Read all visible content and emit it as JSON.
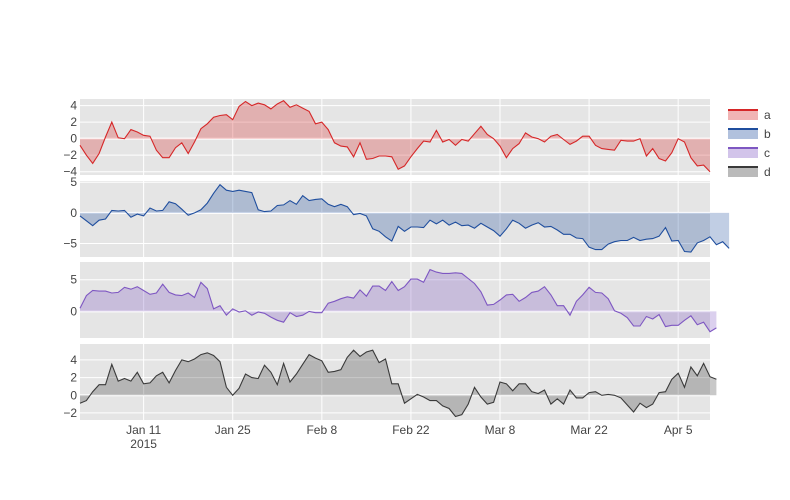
{
  "chart_data": {
    "type": "area",
    "fill_to": "zero",
    "x_start": "2015-01-01",
    "x_end": "2015-04-10",
    "x_ticks": [
      {
        "date": "2015-01-11",
        "label": "Jan 11",
        "sublabel": "2015"
      },
      {
        "date": "2015-01-25",
        "label": "Jan 25",
        "sublabel": ""
      },
      {
        "date": "2015-02-08",
        "label": "Feb 8",
        "sublabel": ""
      },
      {
        "date": "2015-02-22",
        "label": "Feb 22",
        "sublabel": ""
      },
      {
        "date": "2015-03-08",
        "label": "Mar 8",
        "sublabel": ""
      },
      {
        "date": "2015-03-22",
        "label": "Mar 22",
        "sublabel": ""
      },
      {
        "date": "2015-04-05",
        "label": "Apr 5",
        "sublabel": ""
      }
    ],
    "grid": true,
    "legend": "right",
    "series": [
      {
        "name": "a",
        "color": "#d62728",
        "ylim": [
          -4.4,
          4.8
        ],
        "yticks": [
          -4,
          -2,
          0,
          2,
          4
        ],
        "values": [
          -0.8,
          -2.0,
          -3.0,
          -1.8,
          0.2,
          2.0,
          0.1,
          0.0,
          1.1,
          0.8,
          0.4,
          0.3,
          -1.4,
          -2.3,
          -2.3,
          -1.1,
          -0.5,
          -1.8,
          -0.4,
          1.2,
          1.8,
          2.6,
          2.8,
          2.9,
          2.3,
          3.9,
          4.5,
          4.0,
          4.3,
          4.1,
          3.6,
          4.2,
          4.6,
          3.8,
          4.1,
          3.7,
          3.3,
          1.8,
          2.0,
          1.1,
          -0.5,
          -0.9,
          -1.0,
          -2.2,
          -0.5,
          -2.5,
          -2.4,
          -2.1,
          -2.1,
          -2.2,
          -3.7,
          -3.3,
          -2.2,
          -1.2,
          -0.3,
          -0.4,
          1.0,
          -0.4,
          -0.1,
          -0.8,
          -0.1,
          -0.3,
          0.6,
          1.5,
          0.5,
          0.0,
          -0.9,
          -2.3,
          -1.2,
          -0.6,
          0.7,
          0.2,
          0.0,
          -0.4,
          0.3,
          0.5,
          -0.1,
          -0.7,
          -0.3,
          0.3,
          0.3,
          -0.8,
          -1.2,
          -1.3,
          -1.4,
          -0.2,
          -0.3,
          -0.3,
          0.0,
          -2.1,
          -1.2,
          -2.4,
          -2.7,
          -1.7,
          0.0,
          -0.4,
          -2.3,
          -3.3,
          -3.2,
          -4.0
        ]
      },
      {
        "name": "b",
        "color": "#1f4e9e",
        "ylim": [
          -7.2,
          5.2
        ],
        "yticks": [
          -5,
          0,
          5
        ],
        "values": [
          -0.5,
          -1.3,
          -2.1,
          -1.2,
          -1.0,
          0.4,
          0.3,
          0.4,
          -0.7,
          -0.2,
          -0.5,
          0.8,
          0.3,
          0.4,
          1.8,
          1.5,
          0.6,
          -0.4,
          0.0,
          0.5,
          1.6,
          3.2,
          4.6,
          3.7,
          3.5,
          3.7,
          3.5,
          3.3,
          0.5,
          0.2,
          0.3,
          1.2,
          1.3,
          2.0,
          1.4,
          2.8,
          2.0,
          2.2,
          2.3,
          1.4,
          1.0,
          1.4,
          1.0,
          -0.3,
          -0.1,
          -0.5,
          -2.6,
          -3.0,
          -3.9,
          -4.6,
          -2.2,
          -3.0,
          -2.3,
          -2.3,
          -2.4,
          -1.2,
          -1.8,
          -1.2,
          -2.0,
          -1.5,
          -2.1,
          -2.0,
          -2.5,
          -1.7,
          -2.3,
          -2.9,
          -3.8,
          -2.6,
          -1.2,
          -1.7,
          -2.5,
          -2.0,
          -1.6,
          -2.3,
          -2.2,
          -2.8,
          -3.5,
          -3.5,
          -4.1,
          -4.2,
          -5.6,
          -6.0,
          -6.0,
          -5.1,
          -4.7,
          -4.5,
          -4.5,
          -4.0,
          -4.5,
          -4.3,
          -4.2,
          -3.8,
          -2.4,
          -4.6,
          -4.5,
          -6.3,
          -6.4,
          -4.9,
          -4.5,
          -3.9,
          -5.2,
          -4.7,
          -5.8
        ]
      },
      {
        "name": "c",
        "color": "#7e57c2",
        "ylim": [
          -4.2,
          7.8
        ],
        "yticks": [
          0,
          5
        ],
        "values": [
          0.5,
          2.5,
          3.3,
          3.2,
          3.2,
          2.9,
          3.0,
          3.8,
          3.5,
          3.9,
          3.3,
          2.7,
          2.9,
          4.3,
          3.0,
          2.6,
          2.5,
          2.9,
          2.2,
          4.6,
          3.6,
          0.4,
          0.9,
          -0.6,
          0.4,
          -0.1,
          0.1,
          -0.6,
          -0.1,
          -0.3,
          -0.9,
          -1.4,
          -1.7,
          -0.2,
          -0.8,
          -0.6,
          0.0,
          -0.2,
          -0.2,
          1.3,
          1.6,
          2.0,
          2.3,
          2.1,
          3.4,
          2.4,
          4.0,
          4.0,
          3.3,
          4.7,
          3.3,
          3.9,
          5.1,
          5.1,
          4.6,
          6.6,
          6.2,
          6.0,
          6.0,
          6.1,
          6.0,
          5.2,
          4.4,
          3.1,
          1.0,
          1.1,
          1.8,
          2.6,
          2.7,
          1.6,
          2.2,
          3.0,
          3.2,
          3.9,
          2.6,
          0.9,
          0.9,
          -0.6,
          1.6,
          2.6,
          3.8,
          3.0,
          2.9,
          2.0,
          0.1,
          -0.3,
          -1.0,
          -2.3,
          -2.3,
          -0.8,
          -1.2,
          -0.5,
          -2.4,
          -2.2,
          -2.2,
          -1.4,
          -0.7,
          -2.1,
          -1.7,
          -3.2,
          -2.6
        ]
      },
      {
        "name": "d",
        "color": "#3a3a3a",
        "ylim": [
          -2.8,
          5.8
        ],
        "yticks": [
          -2,
          0,
          2,
          4
        ],
        "values": [
          -0.9,
          -0.6,
          0.4,
          1.2,
          1.2,
          3.5,
          1.6,
          1.9,
          1.6,
          2.6,
          1.3,
          1.4,
          2.2,
          2.6,
          1.4,
          2.8,
          4.0,
          3.8,
          4.1,
          4.6,
          4.8,
          4.5,
          3.8,
          0.9,
          0.0,
          0.8,
          2.4,
          2.0,
          1.9,
          3.4,
          2.6,
          1.2,
          3.6,
          1.5,
          2.4,
          3.5,
          4.6,
          4.2,
          3.9,
          2.6,
          2.7,
          2.9,
          4.3,
          5.1,
          4.4,
          4.9,
          5.1,
          3.7,
          4.1,
          1.3,
          1.3,
          -0.9,
          -0.4,
          0.1,
          -0.2,
          -0.6,
          -0.6,
          -1.2,
          -1.5,
          -2.4,
          -2.2,
          -1.0,
          0.9,
          -0.2,
          -1.0,
          -0.8,
          1.5,
          1.3,
          0.5,
          1.3,
          1.3,
          0.4,
          0.2,
          0.6,
          -1.0,
          -0.4,
          -1.0,
          0.6,
          -0.3,
          -0.3,
          0.3,
          0.4,
          0.0,
          0.1,
          0.0,
          -0.3,
          -1.1,
          -1.9,
          -0.9,
          -1.4,
          -1.0,
          0.3,
          0.4,
          1.8,
          2.5,
          0.9,
          3.2,
          2.2,
          3.6,
          2.1,
          1.8
        ]
      }
    ]
  }
}
